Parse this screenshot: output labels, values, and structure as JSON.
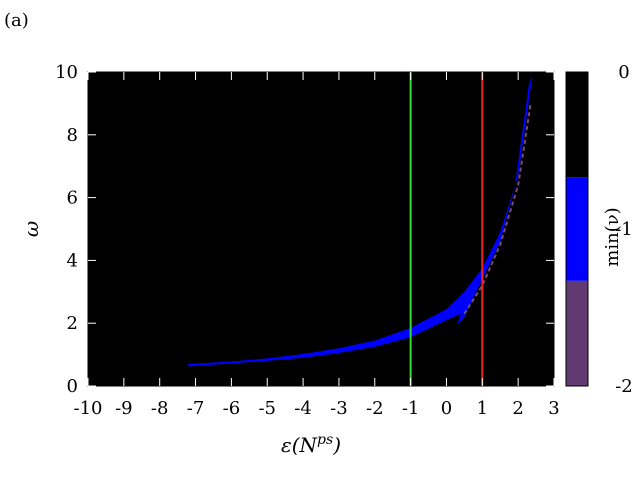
{
  "panel_label": "(a)",
  "chart_data": {
    "type": "heatmap",
    "xlabel": "ε(N",
    "xlabel_sup": "ps",
    "xlabel_close": ")",
    "ylabel": "ω",
    "xlim": [
      -10,
      3
    ],
    "ylim": [
      0,
      10
    ],
    "x_ticks": [
      "-10",
      "-9",
      "-8",
      "-7",
      "-6",
      "-5",
      "-4",
      "-3",
      "-2",
      "-1",
      "0",
      "1",
      "2",
      "3"
    ],
    "y_ticks": [
      "0",
      "2",
      "4",
      "6",
      "8",
      "10"
    ],
    "background_color": "#000000",
    "band": {
      "color": "#0000ff",
      "upper_boundary": [
        [
          -7.2,
          0.7
        ],
        [
          -6,
          0.78
        ],
        [
          -5,
          0.88
        ],
        [
          -4,
          1.02
        ],
        [
          -3,
          1.2
        ],
        [
          -2,
          1.45
        ],
        [
          -1,
          1.85
        ],
        [
          0,
          2.45
        ],
        [
          0.5,
          3.0
        ],
        [
          1,
          3.75
        ],
        [
          1.5,
          4.9
        ],
        [
          2,
          6.7
        ],
        [
          2.4,
          9.9
        ]
      ],
      "lower_boundary": [
        [
          2.3,
          9.6
        ],
        [
          1.9,
          6.3
        ],
        [
          1.5,
          4.6
        ],
        [
          1.0,
          3.4
        ],
        [
          0.7,
          2.7
        ],
        [
          0.5,
          2.2
        ],
        [
          0.3,
          1.95
        ],
        [
          0.4,
          2.3
        ],
        [
          0,
          2.1
        ],
        [
          -1,
          1.55
        ],
        [
          -2,
          1.25
        ],
        [
          -3,
          1.05
        ],
        [
          -4,
          0.9
        ],
        [
          -5,
          0.8
        ],
        [
          -6,
          0.72
        ],
        [
          -7.2,
          0.62
        ]
      ]
    },
    "inner_curve": {
      "color": "#7a4a7a",
      "points": [
        [
          0.5,
          2.3
        ],
        [
          1.0,
          3.2
        ],
        [
          1.5,
          4.5
        ],
        [
          2.0,
          6.4
        ],
        [
          2.35,
          9.0
        ]
      ]
    },
    "vlines": [
      {
        "x": -1,
        "color": "#33dd33"
      },
      {
        "x": 1,
        "color": "#ee2222"
      }
    ],
    "colorbar": {
      "label": "min(ν)",
      "ticks": [
        "0",
        "-1",
        "-2"
      ],
      "range": [
        -2,
        0
      ],
      "levels": [
        {
          "from": -2,
          "to": -1.33,
          "color": "#603a70"
        },
        {
          "from": -1.33,
          "to": -0.67,
          "color": "#0000ff"
        },
        {
          "from": -0.67,
          "to": 0,
          "color": "#000000"
        }
      ]
    }
  }
}
